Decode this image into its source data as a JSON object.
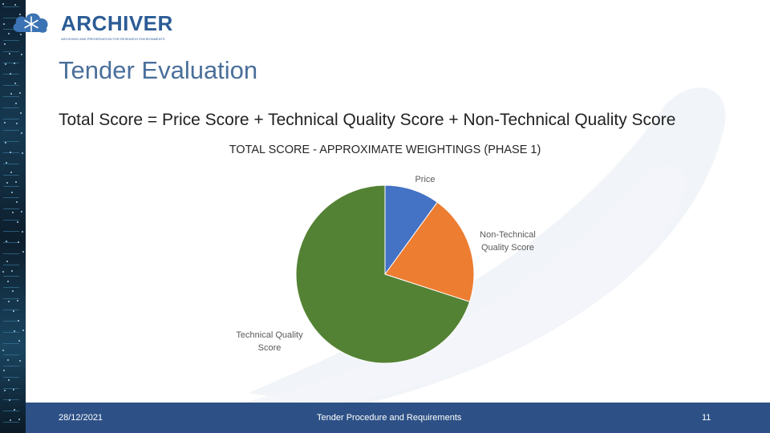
{
  "logo": {
    "name": "ARCHIVER",
    "tagline": "ARCHIVING AND PRESERVATION FOR RESEARCH ENVIRONMENTS"
  },
  "slide": {
    "title": "Tender Evaluation",
    "formula": "Total Score = Price Score + Technical Quality Score + Non-Technical Quality Score"
  },
  "chart_data": {
    "type": "pie",
    "title": "TOTAL SCORE - APPROXIMATE WEIGHTINGS (PHASE 1)",
    "categories": [
      "Price",
      "Non-Technical Quality Score",
      "Technical Quality Score"
    ],
    "label_lines": [
      [
        "Price"
      ],
      [
        "Non-Technical",
        "Quality Score"
      ],
      [
        "Technical Quality",
        "Score"
      ]
    ],
    "values": [
      10,
      20,
      70
    ],
    "colors": [
      "#4472c4",
      "#ed7d31",
      "#548235"
    ],
    "legend": "none"
  },
  "footer": {
    "date": "28/12/2021",
    "title": "Tender Procedure and Requirements",
    "page": "11"
  }
}
